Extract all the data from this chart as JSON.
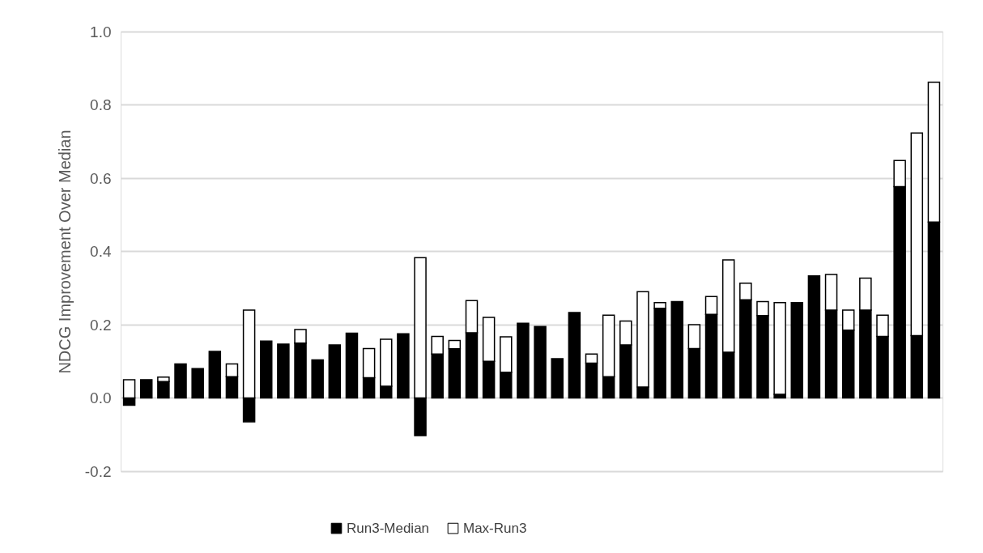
{
  "chart_data": {
    "type": "bar",
    "stacked": true,
    "ylabel": "NDCG Improvement Over Median",
    "categories": [
      null,
      null,
      null,
      null,
      null,
      null,
      null,
      null,
      null,
      null,
      null,
      null,
      null,
      null,
      null,
      null,
      null,
      null,
      null,
      null,
      null,
      null,
      null,
      null,
      null,
      null,
      null,
      null,
      null,
      null,
      null,
      null,
      null,
      null,
      null,
      null,
      null,
      null,
      null,
      null,
      null,
      null,
      null,
      null,
      null,
      null,
      null,
      null
    ],
    "series": [
      {
        "name": "Run3-Median",
        "color": "#000000",
        "values": [
          -0.02,
          0.05,
          0.045,
          0.093,
          0.08,
          0.127,
          0.058,
          -0.065,
          0.155,
          0.147,
          0.15,
          0.104,
          0.145,
          0.177,
          0.055,
          0.032,
          0.175,
          -0.103,
          0.12,
          0.134,
          0.178,
          0.1,
          0.07,
          0.204,
          0.195,
          0.107,
          0.233,
          0.095,
          0.058,
          0.145,
          0.03,
          0.245,
          0.263,
          0.135,
          0.228,
          0.125,
          0.268,
          0.225,
          0.01,
          0.26,
          0.333,
          0.24,
          0.185,
          0.24,
          0.168,
          0.577,
          0.17,
          0.48
        ]
      },
      {
        "name": "Max-Run3",
        "color": "#ffffff",
        "values": [
          0.05,
          null,
          0.012,
          null,
          null,
          null,
          0.035,
          0.24,
          null,
          null,
          0.037,
          null,
          null,
          null,
          0.08,
          0.128,
          null,
          0.383,
          0.048,
          0.023,
          0.088,
          0.12,
          0.097,
          null,
          null,
          null,
          null,
          0.025,
          0.168,
          0.065,
          0.26,
          0.015,
          null,
          0.065,
          0.049,
          0.252,
          0.045,
          0.038,
          0.25,
          null,
          null,
          0.097,
          0.055,
          0.087,
          0.058,
          0.071,
          0.553,
          0.382
        ]
      }
    ],
    "ylim": [
      -0.2,
      1.0
    ],
    "yticks": [
      {
        "value": -0.2,
        "label": "-0.2"
      },
      {
        "value": 0,
        "label": "0.0"
      },
      {
        "value": 0.2,
        "label": "0.2"
      },
      {
        "value": 0.4,
        "label": "0.4"
      },
      {
        "value": 0.6,
        "label": "0.6"
      },
      {
        "value": 0.8,
        "label": "0.8"
      },
      {
        "value": 1.0,
        "label": "1.0"
      }
    ],
    "grid": "y",
    "legend": "bottom",
    "tick_labels": "y"
  }
}
